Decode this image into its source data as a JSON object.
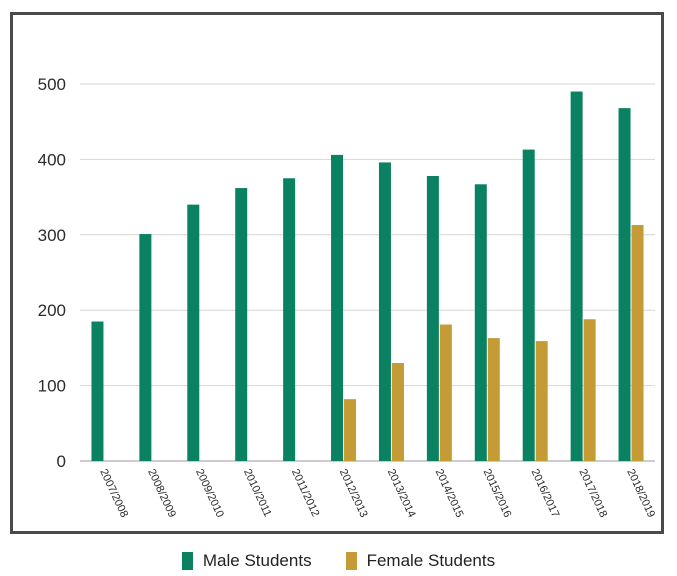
{
  "chart_data": {
    "type": "bar",
    "categories": [
      "2007/2008",
      "2008/2009",
      "2009/2010",
      "2010/2011",
      "2011/2012",
      "2012/2013",
      "2013/2014",
      "2014/2015",
      "2015/2016",
      "2016/2017",
      "2017/2018",
      "2018/2019"
    ],
    "series": [
      {
        "name": "Male Students",
        "values": [
          185,
          301,
          340,
          362,
          375,
          406,
          396,
          378,
          367,
          413,
          490,
          468
        ],
        "color": "#0a8160"
      },
      {
        "name": "Female Students",
        "values": [
          null,
          null,
          null,
          null,
          null,
          82,
          130,
          181,
          163,
          159,
          188,
          313
        ],
        "color": "#c59b35"
      }
    ],
    "ylim": [
      0,
      500
    ],
    "yticks": [
      0,
      100,
      200,
      300,
      400,
      500
    ],
    "grid": true,
    "legend_position": "bottom-center",
    "title": "",
    "xlabel": "",
    "ylabel": ""
  }
}
